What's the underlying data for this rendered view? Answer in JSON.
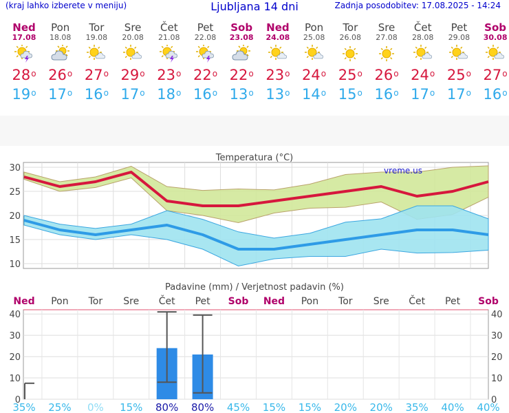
{
  "header": {
    "menu_note": "(kraj lahko izberete v meniju)",
    "title": "Ljubljana 14 dni",
    "updated": "Zadnja posodobitev: 17.08.2025 - 14:24"
  },
  "days": [
    {
      "name": "Ned",
      "date": "17.08",
      "weekend": true,
      "icon": "sun-cloud-storm-icon",
      "tmax": "28",
      "tmin": "19"
    },
    {
      "name": "Pon",
      "date": "18.08",
      "weekend": false,
      "icon": "cloud-sun-icon",
      "tmax": "26",
      "tmin": "17"
    },
    {
      "name": "Tor",
      "date": "19.08",
      "weekend": false,
      "icon": "sun-small-cloud-icon",
      "tmax": "27",
      "tmin": "16"
    },
    {
      "name": "Sre",
      "date": "20.08",
      "weekend": false,
      "icon": "sun-small-cloud-icon",
      "tmax": "29",
      "tmin": "17"
    },
    {
      "name": "Čet",
      "date": "21.08",
      "weekend": false,
      "icon": "sun-cloud-storm-icon",
      "tmax": "23",
      "tmin": "18"
    },
    {
      "name": "Pet",
      "date": "22.08",
      "weekend": false,
      "icon": "sun-cloud-storm-icon",
      "tmax": "22",
      "tmin": "16"
    },
    {
      "name": "Sob",
      "date": "23.08",
      "weekend": true,
      "icon": "cloud-sun-icon",
      "tmax": "22",
      "tmin": "13"
    },
    {
      "name": "Ned",
      "date": "24.08",
      "weekend": true,
      "icon": "sun-small-cloud-icon",
      "tmax": "23",
      "tmin": "13"
    },
    {
      "name": "Pon",
      "date": "25.08",
      "weekend": false,
      "icon": "sun-small-cloud-icon",
      "tmax": "24",
      "tmin": "14"
    },
    {
      "name": "Tor",
      "date": "26.08",
      "weekend": false,
      "icon": "sun-icon",
      "tmax": "25",
      "tmin": "15"
    },
    {
      "name": "Sre",
      "date": "27.08",
      "weekend": false,
      "icon": "sun-icon",
      "tmax": "26",
      "tmin": "16"
    },
    {
      "name": "Čet",
      "date": "28.08",
      "weekend": false,
      "icon": "sun-small-cloud-icon",
      "tmax": "24",
      "tmin": "17"
    },
    {
      "name": "Pet",
      "date": "29.08",
      "weekend": false,
      "icon": "sun-small-cloud-icon",
      "tmax": "25",
      "tmin": "17"
    },
    {
      "name": "Sob",
      "date": "30.08",
      "weekend": true,
      "icon": "sun-small-cloud-icon",
      "tmax": "27",
      "tmin": "16"
    }
  ],
  "colors": {
    "max": "#d6173d",
    "min": "#2ea9ea",
    "weekend": "#b0006a",
    "bar": "#2e8be6",
    "max_band": "#d2e89a",
    "min_band": "#9fe3f0"
  },
  "chart_data": [
    {
      "type": "line",
      "title": "Temperatura (°C)",
      "watermark": "vreme.us",
      "x": [
        "17.08",
        "18.08",
        "19.08",
        "20.08",
        "21.08",
        "22.08",
        "23.08",
        "24.08",
        "25.08",
        "26.08",
        "27.08",
        "28.08",
        "29.08",
        "30.08"
      ],
      "ylim": [
        9,
        31
      ],
      "yticks": [
        10,
        15,
        20,
        25,
        30
      ],
      "grid": true,
      "series": [
        {
          "name": "max",
          "values": [
            28,
            26,
            27,
            29,
            23,
            22,
            22,
            23,
            24,
            25,
            26,
            24,
            25,
            27
          ],
          "band_low": [
            27.5,
            25,
            25.8,
            27.8,
            21,
            20,
            18.5,
            20.5,
            21.5,
            21.7,
            22.8,
            19.2,
            20.2,
            23.8
          ],
          "band_high": [
            29,
            27,
            28,
            30.2,
            26,
            25.2,
            25.5,
            25.3,
            26.5,
            28.5,
            29,
            29,
            30,
            30.3
          ]
        },
        {
          "name": "min",
          "values": [
            19,
            17,
            16,
            17,
            18,
            16,
            13,
            13,
            14,
            15,
            16,
            17,
            17,
            16
          ],
          "band_low": [
            18,
            16,
            15,
            16,
            15,
            13,
            9.5,
            11,
            11.5,
            11.5,
            13,
            12.2,
            12.3,
            12.8
          ],
          "band_high": [
            20,
            18.2,
            17.3,
            18.2,
            21,
            19.2,
            16.6,
            15.3,
            16.3,
            18.6,
            19.3,
            22,
            22,
            19.3
          ]
        }
      ]
    },
    {
      "type": "bar",
      "title": "Padavine (mm) / Verjetnost padavin (%)",
      "categories": [
        "Ned",
        "Pon",
        "Tor",
        "Sre",
        "Čet",
        "Pet",
        "Sob",
        "Ned",
        "Pon",
        "Tor",
        "Sre",
        "Čet",
        "Pet",
        "Sob"
      ],
      "weekend": [
        true,
        false,
        false,
        false,
        false,
        false,
        true,
        true,
        false,
        false,
        false,
        false,
        false,
        true
      ],
      "ylim": [
        0,
        42
      ],
      "yticks": [
        0,
        10,
        20,
        30,
        40
      ],
      "values": [
        0,
        0,
        0,
        0,
        24,
        21,
        0,
        0,
        0,
        0,
        0,
        0,
        0,
        0
      ],
      "range_low": [
        0,
        null,
        null,
        null,
        8,
        3,
        null,
        null,
        null,
        null,
        null,
        null,
        null,
        null
      ],
      "range_high": [
        7.5,
        null,
        null,
        null,
        41,
        39.5,
        null,
        null,
        null,
        null,
        null,
        null,
        null,
        null
      ],
      "probability": [
        "35%",
        "25%",
        "0%",
        "15%",
        "80%",
        "80%",
        "45%",
        "15%",
        "15%",
        "20%",
        "20%",
        "35%",
        "40%",
        "40%"
      ]
    }
  ]
}
